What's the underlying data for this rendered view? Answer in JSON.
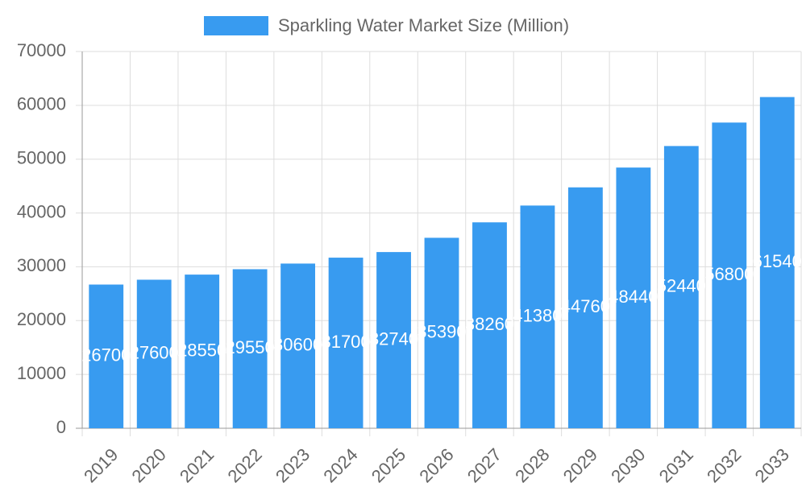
{
  "chart_data": {
    "type": "bar",
    "categories": [
      "2019",
      "2020",
      "2021",
      "2022",
      "2023",
      "2024",
      "2025",
      "2026",
      "2027",
      "2028",
      "2029",
      "2030",
      "2031",
      "2032",
      "2033"
    ],
    "series": [
      {
        "name": "Sparkling Water Market Size (Million)",
        "color": "#389bf0",
        "values": [
          26700,
          27600,
          28550,
          29550,
          30600,
          31700,
          32740,
          35390,
          38260,
          41380,
          44760,
          48440,
          52440,
          56800,
          61540
        ]
      }
    ],
    "ylim": [
      0,
      70000
    ],
    "yticks": [
      0,
      10000,
      20000,
      30000,
      40000,
      50000,
      60000,
      70000
    ],
    "grid": true,
    "legend": "top"
  }
}
